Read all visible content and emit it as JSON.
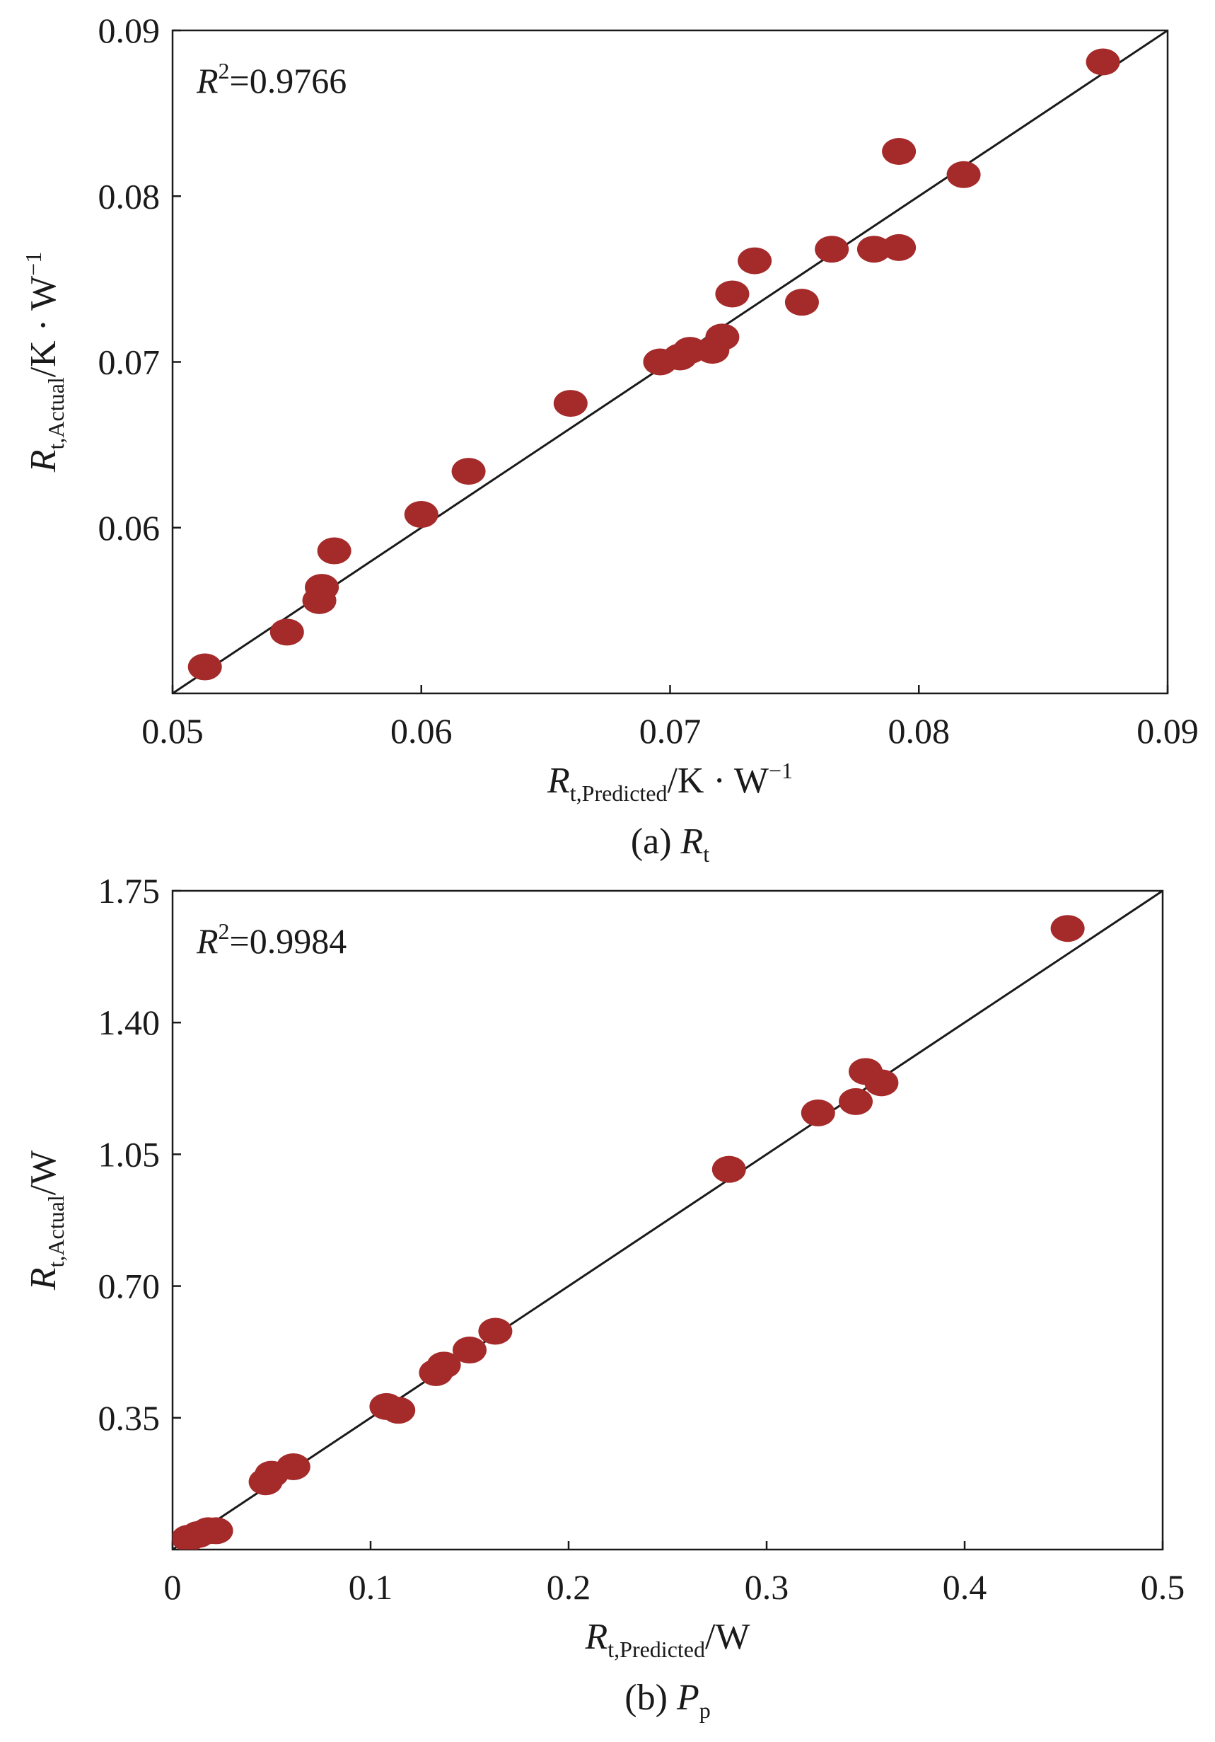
{
  "colors": {
    "point": "#a52a2a",
    "axis": "#1a1a1a"
  },
  "chart_data": [
    {
      "type": "scatter",
      "caption": {
        "prefix": "(a) ",
        "var": "R",
        "sub": "t"
      },
      "r2": {
        "label": "R",
        "sup": "2",
        "value": "=0.9766"
      },
      "xlabel": {
        "var": "R",
        "sub": "t,Predicted",
        "unit": "/K · W",
        "sup": "−1"
      },
      "ylabel": {
        "var": "R",
        "sub": "t,Actual",
        "unit": "/K · W",
        "sup": "−1"
      },
      "xlim": [
        0.05,
        0.09
      ],
      "ylim": [
        0.05,
        0.09
      ],
      "xticks": [
        0.05,
        0.06,
        0.07,
        0.08,
        0.09
      ],
      "yticks": [
        0.06,
        0.07,
        0.08,
        0.09
      ],
      "xtick_labels": [
        "0.05",
        "0.06",
        "0.07",
        "0.08",
        "0.09"
      ],
      "ytick_labels": [
        "0.06",
        "0.07",
        "0.08",
        "0.09"
      ],
      "fit_line": [
        [
          0.05,
          0.05
        ],
        [
          0.09,
          0.09
        ]
      ],
      "points": [
        [
          0.0513,
          0.0516
        ],
        [
          0.0546,
          0.0537
        ],
        [
          0.0559,
          0.0556
        ],
        [
          0.056,
          0.0564
        ],
        [
          0.0565,
          0.0586
        ],
        [
          0.06,
          0.0608
        ],
        [
          0.0619,
          0.0634
        ],
        [
          0.066,
          0.0675
        ],
        [
          0.0696,
          0.07
        ],
        [
          0.0704,
          0.0703
        ],
        [
          0.0708,
          0.0707
        ],
        [
          0.0717,
          0.0707
        ],
        [
          0.0721,
          0.0715
        ],
        [
          0.0725,
          0.0741
        ],
        [
          0.0734,
          0.0761
        ],
        [
          0.0753,
          0.0736
        ],
        [
          0.0765,
          0.0768
        ],
        [
          0.0782,
          0.0768
        ],
        [
          0.0792,
          0.0769
        ],
        [
          0.0792,
          0.0827
        ],
        [
          0.0818,
          0.0813
        ],
        [
          0.0874,
          0.0881
        ]
      ]
    },
    {
      "type": "scatter",
      "caption": {
        "prefix": "(b) ",
        "var": "P",
        "sub": "p"
      },
      "r2": {
        "label": "R",
        "sup": "2",
        "value": "=0.9984"
      },
      "xlabel": {
        "var": "R",
        "sub": "t,Predicted",
        "unit": "/W",
        "sup": ""
      },
      "ylabel": {
        "var": "R",
        "sub": "t,Actual",
        "unit": "/W",
        "sup": ""
      },
      "xlim": [
        0,
        0.5
      ],
      "ylim": [
        0,
        1.75
      ],
      "xticks": [
        0,
        0.1,
        0.2,
        0.3,
        0.4,
        0.5
      ],
      "yticks": [
        0.35,
        0.7,
        1.05,
        1.4,
        1.75
      ],
      "xtick_labels": [
        "0",
        "0.1",
        "0.2",
        "0.3",
        "0.4",
        "0.5"
      ],
      "ytick_labels": [
        "0.35",
        "0.70",
        "1.05",
        "1.40",
        "1.75"
      ],
      "fit_line": [
        [
          0,
          0
        ],
        [
          0.5,
          1.75
        ]
      ],
      "points": [
        [
          0.008,
          0.03
        ],
        [
          0.013,
          0.04
        ],
        [
          0.018,
          0.05
        ],
        [
          0.022,
          0.05
        ],
        [
          0.047,
          0.18
        ],
        [
          0.05,
          0.2
        ],
        [
          0.061,
          0.22
        ],
        [
          0.108,
          0.38
        ],
        [
          0.114,
          0.37
        ],
        [
          0.133,
          0.47
        ],
        [
          0.137,
          0.49
        ],
        [
          0.15,
          0.53
        ],
        [
          0.163,
          0.58
        ],
        [
          0.281,
          1.01
        ],
        [
          0.326,
          1.16
        ],
        [
          0.345,
          1.19
        ],
        [
          0.35,
          1.27
        ],
        [
          0.358,
          1.24
        ],
        [
          0.452,
          1.65
        ]
      ]
    }
  ]
}
